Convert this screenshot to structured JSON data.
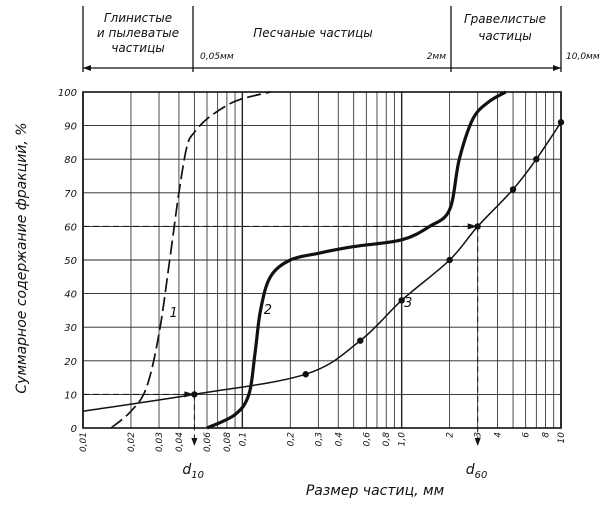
{
  "chart_data": {
    "type": "line",
    "title": "",
    "xlabel": "Размер частиц, мм",
    "ylabel": "Суммарное содержание фракций, %",
    "xscale": "log",
    "xlim": [
      0.01,
      10
    ],
    "ylim": [
      0,
      100
    ],
    "yticks": [
      0,
      10,
      20,
      30,
      40,
      50,
      60,
      70,
      80,
      90,
      100
    ],
    "xticks": [
      {
        "v": 0.01,
        "label": "0,01"
      },
      {
        "v": 0.02,
        "label": "0,02"
      },
      {
        "v": 0.03,
        "label": "0,03"
      },
      {
        "v": 0.04,
        "label": "0,04"
      },
      {
        "v": 0.06,
        "label": "0,06"
      },
      {
        "v": 0.08,
        "label": "0,08"
      },
      {
        "v": 0.1,
        "label": "0,1"
      },
      {
        "v": 0.2,
        "label": "0,2"
      },
      {
        "v": 0.3,
        "label": "0,3"
      },
      {
        "v": 0.4,
        "label": "0,4"
      },
      {
        "v": 0.6,
        "label": "0,6"
      },
      {
        "v": 0.8,
        "label": "0,8"
      },
      {
        "v": 1.0,
        "label": "1,0"
      },
      {
        "v": 2,
        "label": "2"
      },
      {
        "v": 3,
        "label": "3"
      },
      {
        "v": 4,
        "label": "4"
      },
      {
        "v": 6,
        "label": "6"
      },
      {
        "v": 8,
        "label": "8"
      },
      {
        "v": 10,
        "label": "10"
      }
    ],
    "zones": {
      "clay": [
        "Глинистые",
        "и пылеватые",
        "частицы"
      ],
      "sand": [
        "Песчаные  частицы"
      ],
      "gravel": [
        "Гравелистые",
        "частицы"
      ],
      "b1": "0,05мм",
      "b2": "2мм",
      "b3": "10,0мм"
    },
    "series": [
      {
        "name": "1",
        "style": "dashed",
        "points": [
          [
            0.015,
            0
          ],
          [
            0.02,
            5
          ],
          [
            0.025,
            12
          ],
          [
            0.03,
            28
          ],
          [
            0.035,
            50
          ],
          [
            0.04,
            70
          ],
          [
            0.045,
            84
          ],
          [
            0.05,
            88
          ],
          [
            0.06,
            92
          ],
          [
            0.08,
            96
          ],
          [
            0.1,
            98
          ],
          [
            0.15,
            100
          ]
        ]
      },
      {
        "name": "2",
        "style": "bold",
        "points": [
          [
            0.06,
            0
          ],
          [
            0.09,
            4
          ],
          [
            0.11,
            10
          ],
          [
            0.12,
            22
          ],
          [
            0.13,
            35
          ],
          [
            0.15,
            45
          ],
          [
            0.2,
            50
          ],
          [
            0.3,
            52
          ],
          [
            0.5,
            54
          ],
          [
            1.0,
            56
          ],
          [
            1.5,
            60
          ],
          [
            2.0,
            65
          ],
          [
            2.3,
            80
          ],
          [
            2.8,
            92
          ],
          [
            3.5,
            97
          ],
          [
            4.5,
            100
          ]
        ]
      },
      {
        "name": "3",
        "style": "markers",
        "points": [
          [
            0.01,
            5
          ],
          [
            0.05,
            10
          ],
          [
            0.25,
            16
          ],
          [
            0.55,
            26
          ],
          [
            1.0,
            38
          ],
          [
            2.0,
            50
          ],
          [
            3.0,
            60
          ],
          [
            5.0,
            71
          ],
          [
            7.0,
            80
          ],
          [
            10.0,
            91
          ]
        ]
      }
    ],
    "annotations": {
      "d10": {
        "label": "d10",
        "x": 0.05,
        "y": 10
      },
      "d60": {
        "label": "d60",
        "x": 3.0,
        "y": 60
      }
    }
  }
}
